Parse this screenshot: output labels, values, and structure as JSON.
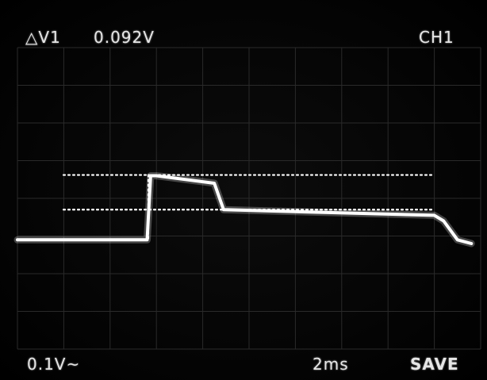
{
  "readouts": {
    "delta_label": "△V1",
    "delta_value": "0.092V",
    "channel": "CH1",
    "volts_per_div": "0.1V~",
    "time_per_div": "2ms",
    "mode": "SAVE"
  },
  "colors": {
    "screen_background": "#000000",
    "trace": "#ffffff",
    "graticule": "#2a2a2a",
    "text": "#e6e6e6"
  },
  "chart_data": {
    "type": "line",
    "title": "",
    "xlabel": "",
    "ylabel": "",
    "x_unit": "ms",
    "y_unit": "V",
    "volts_per_div": 0.1,
    "ms_per_div": 2,
    "xlim": [
      0,
      20
    ],
    "ylim": [
      -0.4,
      0.4
    ],
    "grid": true,
    "series": [
      {
        "name": "",
        "x": [
          0,
          5.6,
          5.75,
          6.0,
          8.5,
          8.9,
          18.0,
          18.4,
          19.0,
          19.6
        ],
        "y": [
          -0.11,
          -0.11,
          0.06,
          0.06,
          0.04,
          -0.03,
          -0.045,
          -0.06,
          -0.11,
          -0.12
        ]
      }
    ],
    "cursors": {
      "upper_v": 0.062,
      "lower_v": -0.03,
      "delta_v": 0.092,
      "marker_time_ms": 5.65
    }
  }
}
